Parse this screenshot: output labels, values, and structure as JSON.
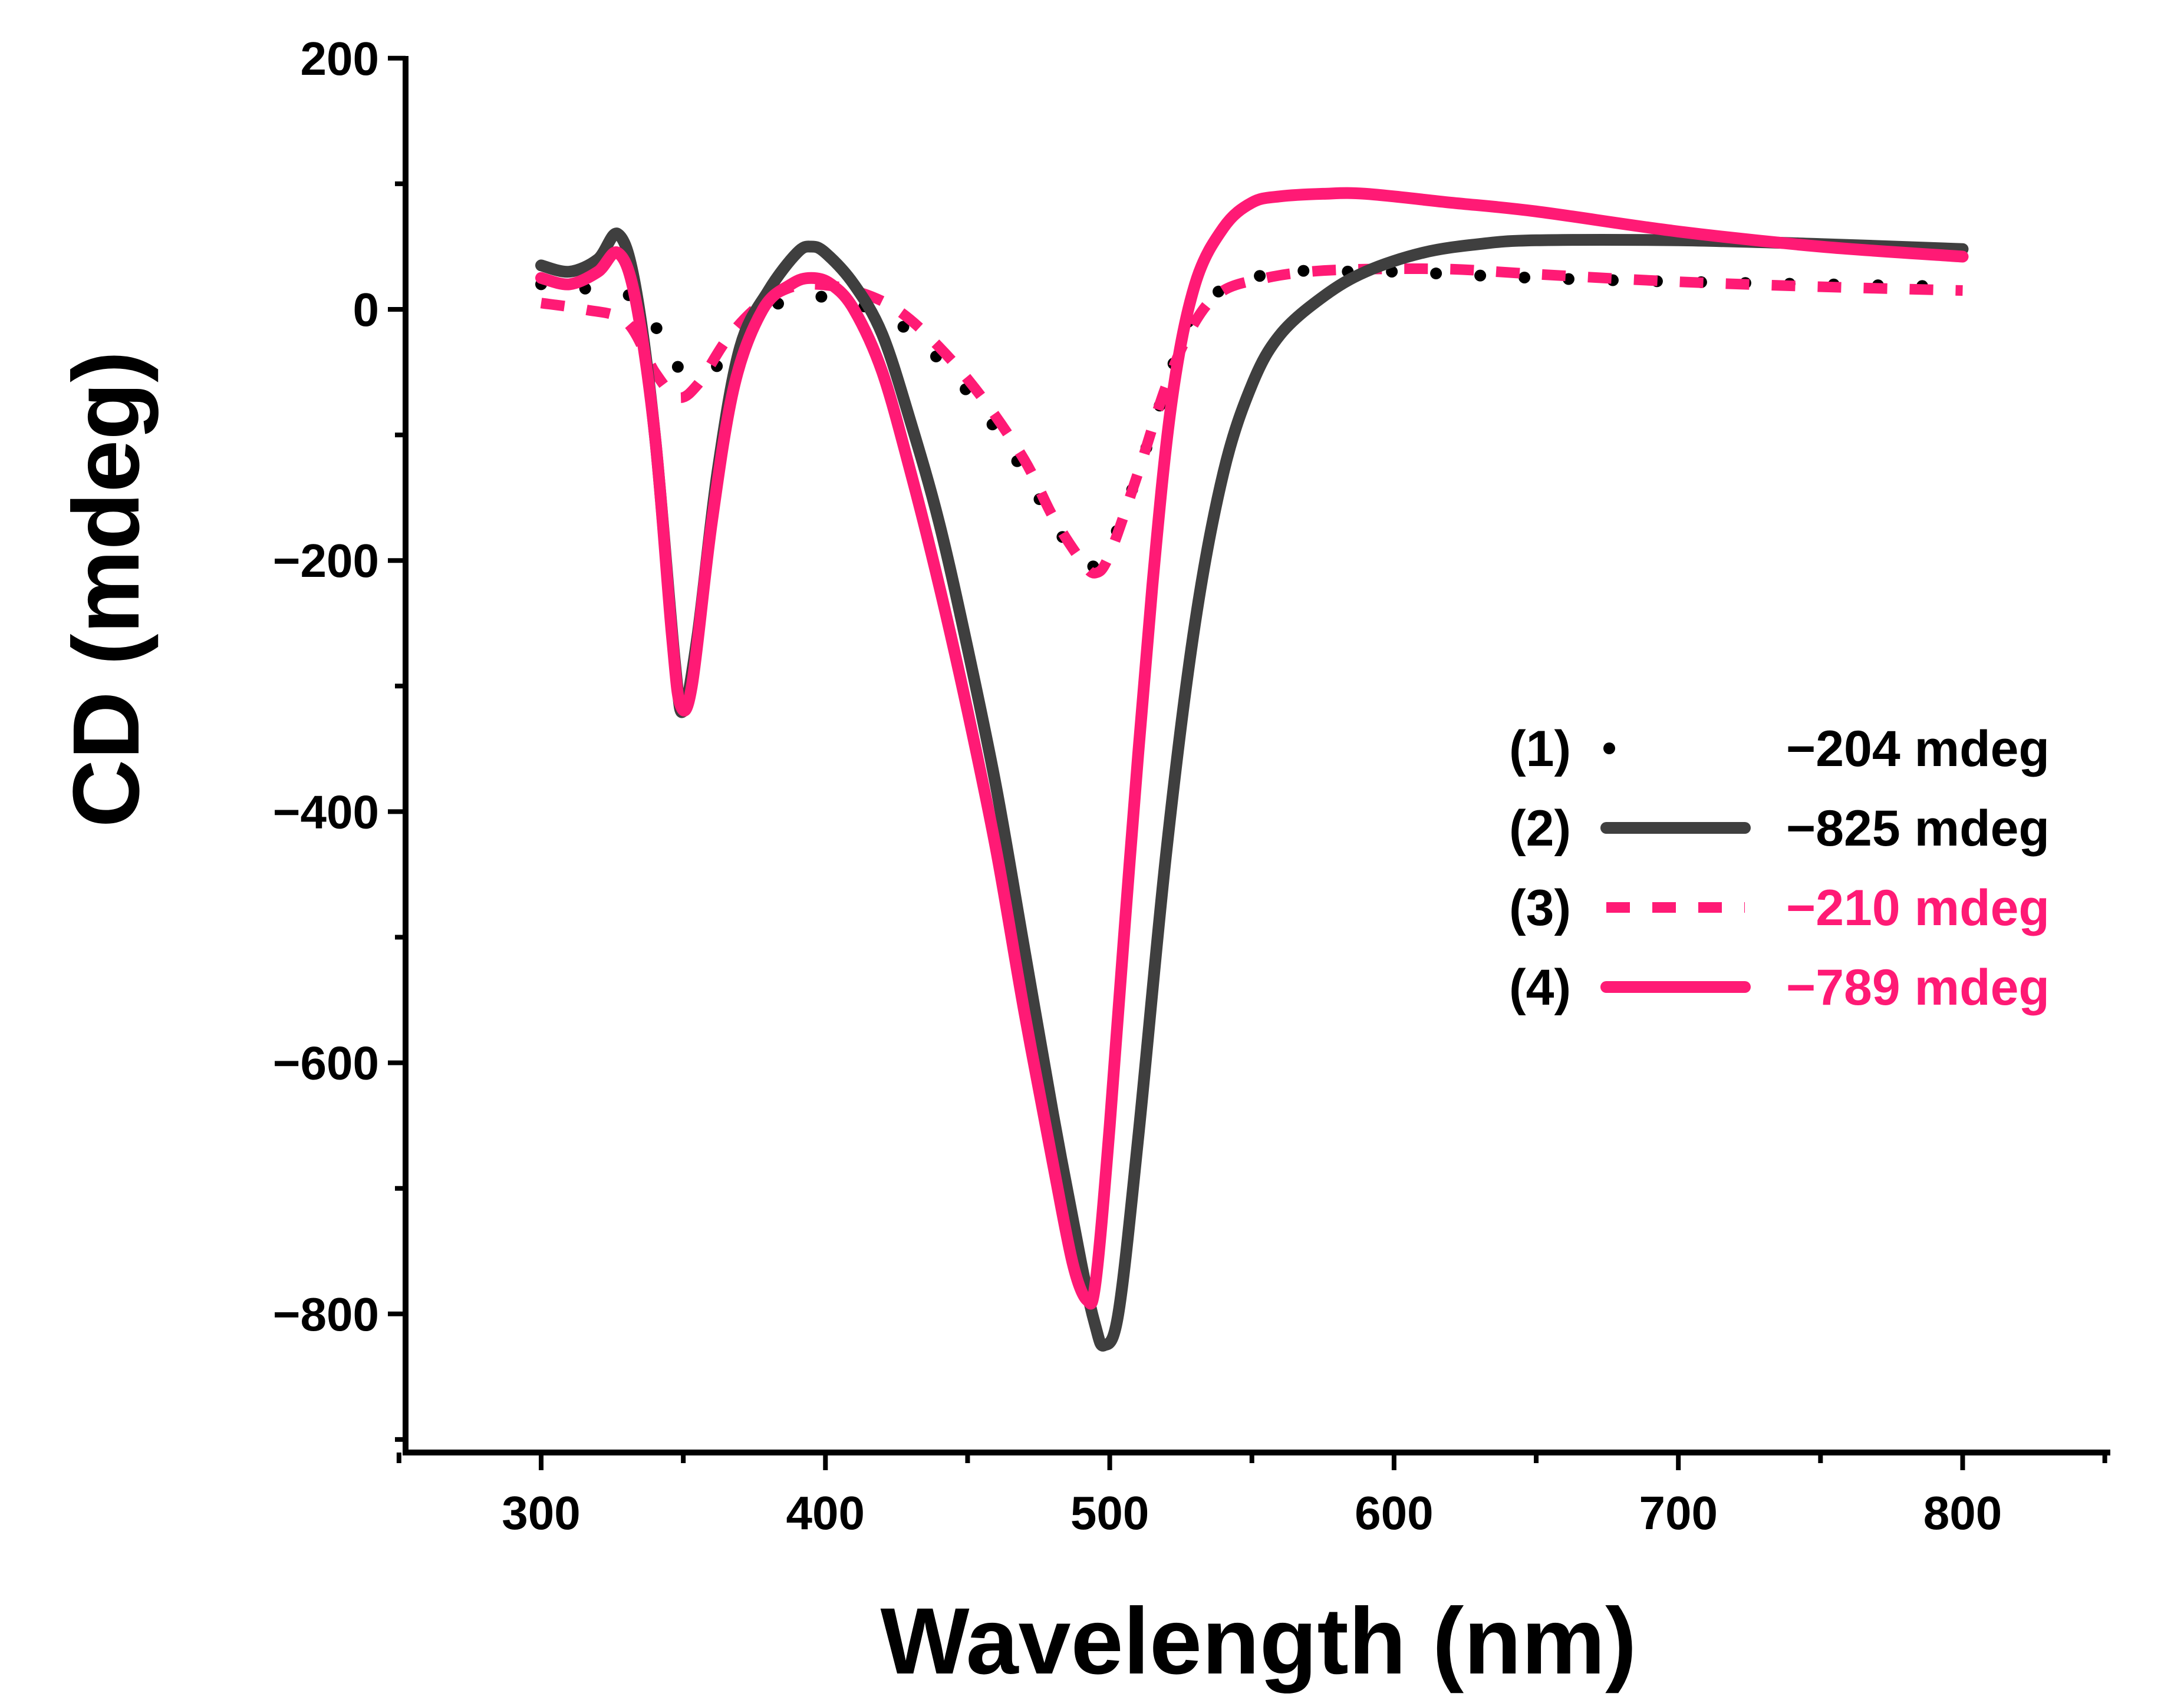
{
  "chart_data": {
    "type": "line",
    "title": "",
    "xlabel": "Wavelength (nm)",
    "ylabel": "CD (mdeg)",
    "xlim": [
      250,
      850
    ],
    "ylim": [
      -900,
      200
    ],
    "xticks": [
      300,
      400,
      500,
      600,
      700,
      800
    ],
    "xtick_labels": [
      "300",
      "400",
      "500",
      "600",
      "700",
      "800"
    ],
    "yticks": [
      200,
      0,
      -200,
      -400,
      -600,
      -800
    ],
    "ytick_labels": [
      "200",
      "0",
      "−200",
      "−400",
      "−600",
      "−800"
    ],
    "grid": false,
    "legend_position": "right",
    "series": [
      {
        "id": "s1",
        "name": "(1)",
        "legend_value": "−204 mdeg",
        "color": "#000000",
        "text_color": "#000000",
        "style": "dotted",
        "x": [
          300,
          320,
          335,
          350,
          365,
          380,
          395,
          410,
          425,
          440,
          455,
          470,
          480,
          490,
          495,
          500,
          510,
          520,
          530,
          545,
          560,
          580,
          600,
          650,
          700,
          750,
          800
        ],
        "y": [
          20,
          15,
          5,
          -50,
          -40,
          0,
          10,
          5,
          -10,
          -40,
          -80,
          -130,
          -170,
          -200,
          -204,
          -190,
          -130,
          -60,
          0,
          20,
          30,
          30,
          30,
          25,
          22,
          20,
          18
        ]
      },
      {
        "id": "s2",
        "name": "(2)",
        "legend_value": "−825 mdeg",
        "color": "#3f3f3f",
        "text_color": "#000000",
        "style": "solid",
        "x": [
          300,
          310,
          320,
          327,
          333,
          340,
          347,
          350,
          355,
          362,
          370,
          380,
          390,
          395,
          400,
          410,
          420,
          430,
          440,
          450,
          460,
          470,
          480,
          490,
          495,
          498,
          503,
          510,
          520,
          530,
          540,
          550,
          560,
          575,
          590,
          610,
          630,
          650,
          700,
          750,
          800
        ],
        "y": [
          35,
          30,
          40,
          60,
          20,
          -100,
          -280,
          -320,
          -260,
          -130,
          -30,
          15,
          45,
          50,
          45,
          20,
          -20,
          -90,
          -170,
          -270,
          -380,
          -510,
          -640,
          -760,
          -810,
          -825,
          -800,
          -660,
          -430,
          -250,
          -130,
          -60,
          -20,
          10,
          30,
          45,
          52,
          55,
          55,
          52,
          48
        ]
      },
      {
        "id": "s3",
        "name": "(3)",
        "legend_value": "−210 mdeg",
        "color": "#ff1a75",
        "text_color": "#ff1a75",
        "style": "dashed",
        "x": [
          300,
          315,
          330,
          340,
          348,
          355,
          365,
          375,
          385,
          395,
          410,
          425,
          440,
          455,
          470,
          480,
          490,
          495,
          500,
          510,
          520,
          530,
          540,
          555,
          570,
          590,
          620,
          650,
          700,
          750,
          800
        ],
        "y": [
          5,
          0,
          -10,
          -50,
          -70,
          -60,
          -25,
          0,
          15,
          20,
          15,
          0,
          -30,
          -70,
          -120,
          -165,
          -200,
          -210,
          -195,
          -130,
          -60,
          -10,
          15,
          25,
          30,
          32,
          32,
          28,
          22,
          18,
          15
        ]
      },
      {
        "id": "s4",
        "name": "(4)",
        "legend_value": "−789 mdeg",
        "color": "#ff1a75",
        "text_color": "#ff1a75",
        "style": "solid",
        "x": [
          300,
          310,
          320,
          327,
          333,
          340,
          346,
          349,
          353,
          360,
          368,
          378,
          388,
          395,
          402,
          410,
          420,
          430,
          440,
          450,
          460,
          470,
          480,
          487,
          492,
          495,
          500,
          507,
          515,
          522,
          530,
          540,
          550,
          560,
          575,
          590,
          620,
          650,
          700,
          750,
          800
        ],
        "y": [
          25,
          20,
          30,
          45,
          10,
          -100,
          -260,
          -315,
          -300,
          -170,
          -60,
          0,
          20,
          25,
          20,
          0,
          -50,
          -130,
          -220,
          -320,
          -430,
          -560,
          -680,
          -760,
          -789,
          -775,
          -650,
          -440,
          -220,
          -70,
          20,
          65,
          85,
          90,
          92,
          92,
          85,
          78,
          62,
          50,
          42
        ]
      }
    ]
  }
}
